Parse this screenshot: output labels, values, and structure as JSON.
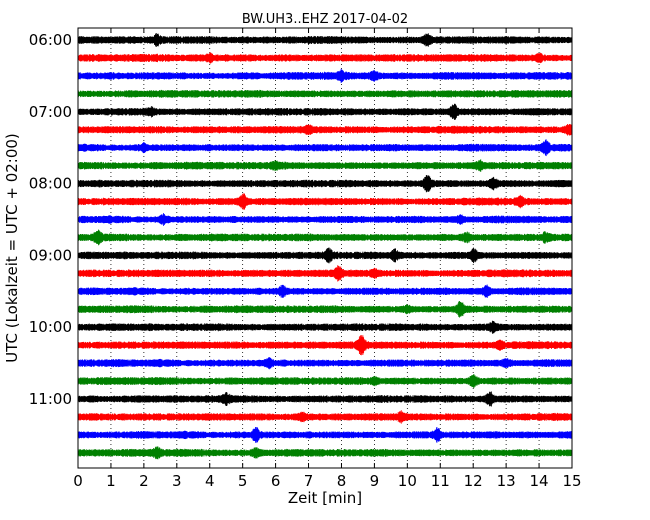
{
  "chart_data": {
    "type": "line",
    "title": "BW.UH3..EHZ 2017-04-02",
    "xlabel": "Zeit  [min]",
    "ylabel": "UTC (Lokalzeit = UTC + 02:00)",
    "xlim": [
      0,
      15
    ],
    "x_ticks": [
      "0",
      "1",
      "2",
      "3",
      "4",
      "5",
      "6",
      "7",
      "8",
      "9",
      "10",
      "11",
      "12",
      "13",
      "14",
      "15"
    ],
    "y_ticks": [
      "06:00",
      "07:00",
      "08:00",
      "09:00",
      "10:00",
      "11:00"
    ],
    "traces_per_hour": 4,
    "grid": "vertical-dotted",
    "series": [
      {
        "start": "06:00",
        "color": "#000000",
        "events": [
          [
            2.4,
            2.0
          ],
          [
            10.6,
            2.0
          ]
        ]
      },
      {
        "start": "06:15",
        "color": "#ff0000",
        "events": [
          [
            4.0,
            1.6
          ],
          [
            14.0,
            1.6
          ]
        ]
      },
      {
        "start": "06:30",
        "color": "#0000ff",
        "events": [
          [
            8.0,
            2.0
          ],
          [
            9.0,
            1.8
          ]
        ]
      },
      {
        "start": "06:45",
        "color": "#008000",
        "events": []
      },
      {
        "start": "07:00",
        "color": "#000000",
        "events": [
          [
            11.4,
            2.6
          ],
          [
            2.2,
            1.6
          ]
        ]
      },
      {
        "start": "07:15",
        "color": "#ff0000",
        "events": [
          [
            7.0,
            1.6
          ],
          [
            14.9,
            1.8
          ]
        ]
      },
      {
        "start": "07:30",
        "color": "#0000ff",
        "events": [
          [
            14.2,
            2.4
          ],
          [
            2.0,
            1.6
          ]
        ]
      },
      {
        "start": "07:45",
        "color": "#008000",
        "events": [
          [
            12.2,
            1.8
          ],
          [
            6.0,
            1.5
          ]
        ]
      },
      {
        "start": "08:00",
        "color": "#000000",
        "events": [
          [
            10.6,
            2.6
          ],
          [
            12.6,
            2.0
          ]
        ]
      },
      {
        "start": "08:15",
        "color": "#ff0000",
        "events": [
          [
            5.0,
            2.6
          ],
          [
            13.4,
            2.0
          ]
        ]
      },
      {
        "start": "08:30",
        "color": "#0000ff",
        "events": [
          [
            2.6,
            1.8
          ],
          [
            11.6,
            1.6
          ]
        ]
      },
      {
        "start": "08:45",
        "color": "#008000",
        "events": [
          [
            0.6,
            2.4
          ],
          [
            11.8,
            1.8
          ],
          [
            14.2,
            2.0
          ]
        ]
      },
      {
        "start": "09:00",
        "color": "#000000",
        "events": [
          [
            7.6,
            2.2
          ],
          [
            9.6,
            2.0
          ],
          [
            12.0,
            2.2
          ]
        ]
      },
      {
        "start": "09:15",
        "color": "#ff0000",
        "events": [
          [
            7.9,
            2.4
          ],
          [
            9.0,
            1.6
          ]
        ]
      },
      {
        "start": "09:30",
        "color": "#0000ff",
        "events": [
          [
            6.2,
            2.0
          ],
          [
            12.4,
            2.0
          ]
        ]
      },
      {
        "start": "09:45",
        "color": "#008000",
        "events": [
          [
            11.6,
            2.8
          ],
          [
            10.0,
            1.5
          ]
        ]
      },
      {
        "start": "10:00",
        "color": "#000000",
        "events": [
          [
            12.6,
            2.0
          ]
        ]
      },
      {
        "start": "10:15",
        "color": "#ff0000",
        "events": [
          [
            8.6,
            3.2
          ],
          [
            12.8,
            1.6
          ]
        ]
      },
      {
        "start": "10:30",
        "color": "#0000ff",
        "events": [
          [
            5.8,
            1.8
          ],
          [
            13.0,
            1.6
          ]
        ]
      },
      {
        "start": "10:45",
        "color": "#008000",
        "events": [
          [
            12.0,
            2.2
          ],
          [
            9.0,
            1.5
          ]
        ]
      },
      {
        "start": "11:00",
        "color": "#000000",
        "events": [
          [
            12.5,
            2.4
          ],
          [
            4.5,
            2.0
          ]
        ]
      },
      {
        "start": "11:15",
        "color": "#ff0000",
        "events": [
          [
            9.8,
            1.8
          ],
          [
            6.8,
            1.6
          ]
        ]
      },
      {
        "start": "11:30",
        "color": "#0000ff",
        "events": [
          [
            5.4,
            2.4
          ],
          [
            10.9,
            2.2
          ]
        ]
      },
      {
        "start": "11:45",
        "color": "#008000",
        "events": [
          [
            2.4,
            1.8
          ],
          [
            5.4,
            1.6
          ]
        ]
      }
    ]
  }
}
